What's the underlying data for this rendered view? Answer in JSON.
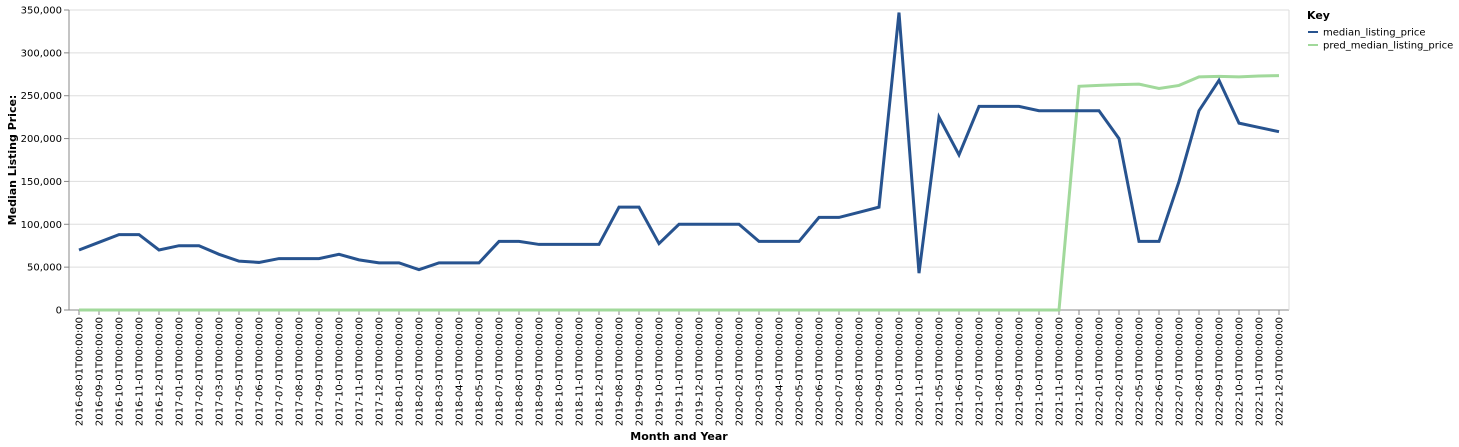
{
  "chart_data": {
    "type": "line",
    "title": "",
    "xlabel": "Month and Year",
    "ylabel": "Median Listing Price:",
    "ylim": [
      0,
      350000
    ],
    "yticks": [
      0,
      50000,
      100000,
      150000,
      200000,
      250000,
      300000,
      350000
    ],
    "ytick_labels": [
      "0",
      "50,000",
      "100,000",
      "150,000",
      "200,000",
      "250,000",
      "300,000",
      "350,000"
    ],
    "grid": true,
    "legend": {
      "title": "Key",
      "placement": "top-right"
    },
    "x": [
      "2016-08-01T00:00:00",
      "2016-09-01T00:00:00",
      "2016-10-01T00:00:00",
      "2016-11-01T00:00:00",
      "2016-12-01T00:00:00",
      "2017-01-01T00:00:00",
      "2017-02-01T00:00:00",
      "2017-03-01T00:00:00",
      "2017-05-01T00:00:00",
      "2017-06-01T00:00:00",
      "2017-07-01T00:00:00",
      "2017-08-01T00:00:00",
      "2017-09-01T00:00:00",
      "2017-10-01T00:00:00",
      "2017-11-01T00:00:00",
      "2017-12-01T00:00:00",
      "2018-01-01T00:00:00",
      "2018-02-01T00:00:00",
      "2018-03-01T00:00:00",
      "2018-04-01T00:00:00",
      "2018-05-01T00:00:00",
      "2018-07-01T00:00:00",
      "2018-08-01T00:00:00",
      "2018-09-01T00:00:00",
      "2018-10-01T00:00:00",
      "2018-11-01T00:00:00",
      "2018-12-01T00:00:00",
      "2019-08-01T00:00:00",
      "2019-09-01T00:00:00",
      "2019-10-01T00:00:00",
      "2019-11-01T00:00:00",
      "2019-12-01T00:00:00",
      "2020-01-01T00:00:00",
      "2020-02-01T00:00:00",
      "2020-03-01T00:00:00",
      "2020-04-01T00:00:00",
      "2020-05-01T00:00:00",
      "2020-06-01T00:00:00",
      "2020-07-01T00:00:00",
      "2020-08-01T00:00:00",
      "2020-09-01T00:00:00",
      "2020-10-01T00:00:00",
      "2020-11-01T00:00:00",
      "2021-05-01T00:00:00",
      "2021-06-01T00:00:00",
      "2021-07-01T00:00:00",
      "2021-08-01T00:00:00",
      "2021-09-01T00:00:00",
      "2021-10-01T00:00:00",
      "2021-11-01T00:00:00",
      "2021-12-01T00:00:00",
      "2022-01-01T00:00:00",
      "2022-02-01T00:00:00",
      "2022-05-01T00:00:00",
      "2022-06-01T00:00:00",
      "2022-07-01T00:00:00",
      "2022-08-01T00:00:00",
      "2022-09-01T00:00:00",
      "2022-10-01T00:00:00",
      "2022-11-01T00:00:00",
      "2022-12-01T00:00:00"
    ],
    "series": [
      {
        "name": "median_listing_price",
        "color": "#27538f",
        "values": [
          70000,
          79000,
          88000,
          88000,
          70000,
          75000,
          75000,
          65000,
          57000,
          55500,
          60000,
          60000,
          60000,
          65000,
          58500,
          55000,
          55000,
          47000,
          55000,
          55000,
          55000,
          80000,
          80000,
          76500,
          76500,
          76500,
          76500,
          120000,
          120000,
          77500,
          100000,
          100000,
          100000,
          100000,
          80000,
          80000,
          80000,
          108000,
          108000,
          114000,
          120000,
          347000,
          43000,
          225000,
          181000,
          237500,
          237500,
          237500,
          232500,
          232500,
          232500,
          232500,
          200000,
          80000,
          80000,
          150000,
          232500,
          268000,
          218000,
          213000,
          208000
        ]
      },
      {
        "name": "pred_median_listing_price",
        "color": "#a1d99b",
        "values": [
          0,
          0,
          0,
          0,
          0,
          0,
          0,
          0,
          0,
          0,
          0,
          0,
          0,
          0,
          0,
          0,
          0,
          0,
          0,
          0,
          0,
          0,
          0,
          0,
          0,
          0,
          0,
          0,
          0,
          0,
          0,
          0,
          0,
          0,
          0,
          0,
          0,
          0,
          0,
          0,
          0,
          0,
          0,
          0,
          0,
          0,
          0,
          0,
          0,
          0,
          261000,
          262000,
          263000,
          263500,
          258500,
          262000,
          272000,
          272500,
          272000,
          273000,
          273500
        ]
      }
    ]
  }
}
